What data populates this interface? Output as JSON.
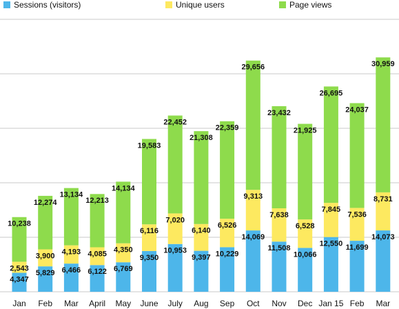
{
  "chart_data": {
    "type": "stacked_bar",
    "categories": [
      "Jan",
      "Feb",
      "Mar",
      "April",
      "May",
      "June",
      "July",
      "Aug",
      "Sep",
      "Oct",
      "Nov",
      "Dec",
      "Jan 15",
      "Feb",
      "Mar"
    ],
    "series": [
      {
        "name": "Sessions (visitors)",
        "color": "#4db6ea",
        "values": [
          4347,
          5829,
          6466,
          6122,
          6769,
          9350,
          10953,
          9397,
          10229,
          14069,
          11508,
          10066,
          12550,
          11699,
          14073
        ],
        "value_labels": [
          "4,347",
          "5,829",
          "6,466",
          "6,122",
          "6,769",
          "9,350",
          "10,953",
          "9,397",
          "10,229",
          "14,069",
          "11,508",
          "10,066",
          "12,550",
          "11,699",
          "14,073"
        ]
      },
      {
        "name": "Unique users",
        "color": "#fde960",
        "values": [
          2543,
          3900,
          4193,
          4085,
          4350,
          6116,
          7020,
          6140,
          6526,
          9313,
          7638,
          6528,
          7845,
          7536,
          8731
        ],
        "value_labels": [
          "2,543",
          "3,900",
          "4,193",
          "4,085",
          "4,350",
          "6,116",
          "7,020",
          "6,140",
          "6,526",
          "9,313",
          "7,638",
          "6,528",
          "7,845",
          "7,536",
          "8,731"
        ]
      },
      {
        "name": "Page views",
        "color": "#8edb4c",
        "values": [
          10238,
          12274,
          13134,
          12213,
          14134,
          19583,
          22452,
          21308,
          22359,
          29656,
          23432,
          21925,
          26695,
          24037,
          30959
        ],
        "value_labels": [
          "10,238",
          "12,274",
          "13,134",
          "12,213",
          "14,134",
          "19,583",
          "22,452",
          "21,308",
          "22,359",
          "29,656",
          "23,432",
          "21,925",
          "26,695",
          "24,037",
          "30,959"
        ]
      }
    ],
    "ylim": [
      0,
      62500
    ],
    "yticks": [
      0,
      12500,
      25000,
      37500,
      50000,
      62500
    ],
    "grid": true,
    "legend": "top"
  }
}
